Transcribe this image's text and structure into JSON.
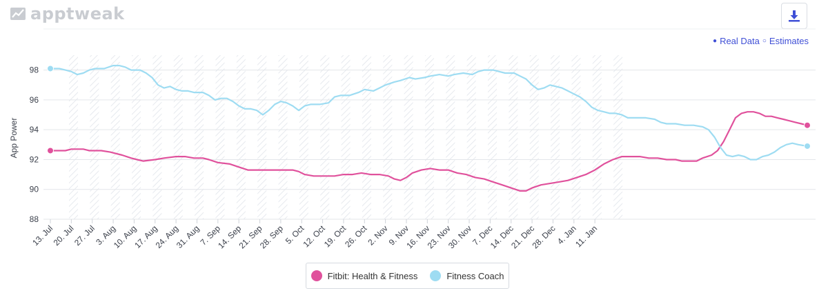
{
  "brand": {
    "name": "apptweak"
  },
  "toolbar": {
    "download_icon": "download-icon"
  },
  "legend_top": {
    "real_label": "Real Data",
    "estimates_label": "Estimates",
    "real_symbol": "●",
    "estimates_symbol": "○"
  },
  "chart_data": {
    "type": "line",
    "title": "",
    "xlabel": "",
    "ylabel": "App Power",
    "ylim": [
      88,
      99
    ],
    "yticks": [
      88,
      90,
      92,
      94,
      96,
      98
    ],
    "grid": "horizontal",
    "legend_position": "bottom-center",
    "categories": [
      "13. Jul",
      "20. Jul",
      "27. Jul",
      "3. Aug",
      "10. Aug",
      "17. Aug",
      "24. Aug",
      "31. Aug",
      "7. Sep",
      "14. Sep",
      "21. Sep",
      "28. Sep",
      "5. Oct",
      "12. Oct",
      "19. Oct",
      "26. Oct",
      "2. Nov",
      "9. Nov",
      "16. Nov",
      "23. Nov",
      "30. Nov",
      "7. Dec",
      "14. Dec",
      "21. Dec",
      "28. Dec",
      "4. Jan",
      "11. Jan"
    ],
    "x_days": [
      0,
      7,
      14,
      21,
      28,
      35,
      42,
      49,
      56,
      63,
      70,
      77,
      84,
      91,
      98,
      105,
      112,
      119,
      126,
      133,
      140,
      147,
      154,
      161,
      168,
      175,
      182
    ],
    "series": [
      {
        "name": "Fitbit: Health & Fitness",
        "color": "#e0519c",
        "points": [
          [
            0,
            92.6
          ],
          [
            5,
            92.6
          ],
          [
            7,
            92.7
          ],
          [
            11,
            92.7
          ],
          [
            13,
            92.6
          ],
          [
            17,
            92.6
          ],
          [
            20,
            92.5
          ],
          [
            24,
            92.3
          ],
          [
            27,
            92.1
          ],
          [
            29,
            92.0
          ],
          [
            31,
            91.9
          ],
          [
            35,
            92.0
          ],
          [
            38,
            92.1
          ],
          [
            42,
            92.2
          ],
          [
            45,
            92.2
          ],
          [
            48,
            92.1
          ],
          [
            51,
            92.1
          ],
          [
            53,
            92.0
          ],
          [
            56,
            91.8
          ],
          [
            60,
            91.7
          ],
          [
            63,
            91.5
          ],
          [
            66,
            91.3
          ],
          [
            70,
            91.3
          ],
          [
            74,
            91.3
          ],
          [
            78,
            91.3
          ],
          [
            81,
            91.3
          ],
          [
            83,
            91.2
          ],
          [
            85,
            91.0
          ],
          [
            88,
            90.9
          ],
          [
            91,
            90.9
          ],
          [
            95,
            90.9
          ],
          [
            98,
            91.0
          ],
          [
            101,
            91.0
          ],
          [
            104,
            91.1
          ],
          [
            107,
            91.0
          ],
          [
            110,
            91.0
          ],
          [
            113,
            90.9
          ],
          [
            115,
            90.7
          ],
          [
            117,
            90.6
          ],
          [
            119,
            90.8
          ],
          [
            121,
            91.1
          ],
          [
            124,
            91.3
          ],
          [
            127,
            91.4
          ],
          [
            130,
            91.3
          ],
          [
            133,
            91.3
          ],
          [
            136,
            91.1
          ],
          [
            139,
            91.0
          ],
          [
            142,
            90.8
          ],
          [
            145,
            90.7
          ],
          [
            148,
            90.5
          ],
          [
            151,
            90.3
          ],
          [
            154,
            90.1
          ],
          [
            157,
            89.9
          ],
          [
            159,
            89.9
          ],
          [
            161,
            90.1
          ],
          [
            164,
            90.3
          ],
          [
            167,
            90.4
          ],
          [
            170,
            90.5
          ],
          [
            173,
            90.6
          ],
          [
            176,
            90.8
          ],
          [
            179,
            91.0
          ],
          [
            182,
            91.3
          ],
          [
            185,
            91.7
          ],
          [
            188,
            92.0
          ],
          [
            191,
            92.2
          ],
          [
            194,
            92.2
          ],
          [
            197,
            92.2
          ],
          [
            200,
            92.1
          ],
          [
            203,
            92.1
          ],
          [
            206,
            92.0
          ],
          [
            209,
            92.0
          ],
          [
            211,
            91.9
          ],
          [
            214,
            91.9
          ],
          [
            216,
            91.9
          ],
          [
            218,
            92.1
          ],
          [
            221,
            92.3
          ],
          [
            223,
            92.6
          ],
          [
            225,
            93.2
          ],
          [
            227,
            94.0
          ],
          [
            229,
            94.8
          ],
          [
            231,
            95.1
          ],
          [
            233,
            95.2
          ],
          [
            235,
            95.2
          ],
          [
            237,
            95.1
          ],
          [
            239,
            94.9
          ],
          [
            241,
            94.9
          ],
          [
            243,
            94.8
          ],
          [
            245,
            94.7
          ],
          [
            247,
            94.6
          ],
          [
            249,
            94.5
          ],
          [
            251,
            94.4
          ],
          [
            253,
            94.3
          ]
        ]
      },
      {
        "name": "Fitness Coach",
        "color": "#9edcf2",
        "points": [
          [
            0,
            98.1
          ],
          [
            3,
            98.1
          ],
          [
            5,
            98.0
          ],
          [
            7,
            97.9
          ],
          [
            9,
            97.7
          ],
          [
            11,
            97.8
          ],
          [
            13,
            98.0
          ],
          [
            15,
            98.1
          ],
          [
            18,
            98.1
          ],
          [
            21,
            98.3
          ],
          [
            23,
            98.3
          ],
          [
            25,
            98.2
          ],
          [
            27,
            98.0
          ],
          [
            30,
            98.0
          ],
          [
            32,
            97.8
          ],
          [
            34,
            97.5
          ],
          [
            36,
            97.0
          ],
          [
            38,
            96.8
          ],
          [
            40,
            96.9
          ],
          [
            42,
            96.7
          ],
          [
            44,
            96.6
          ],
          [
            46,
            96.6
          ],
          [
            48,
            96.5
          ],
          [
            51,
            96.5
          ],
          [
            53,
            96.3
          ],
          [
            55,
            96.0
          ],
          [
            57,
            96.1
          ],
          [
            59,
            96.1
          ],
          [
            61,
            95.9
          ],
          [
            63,
            95.6
          ],
          [
            65,
            95.4
          ],
          [
            67,
            95.4
          ],
          [
            69,
            95.3
          ],
          [
            71,
            95.0
          ],
          [
            73,
            95.3
          ],
          [
            75,
            95.7
          ],
          [
            77,
            95.9
          ],
          [
            79,
            95.8
          ],
          [
            81,
            95.6
          ],
          [
            83,
            95.3
          ],
          [
            85,
            95.6
          ],
          [
            87,
            95.7
          ],
          [
            90,
            95.7
          ],
          [
            93,
            95.8
          ],
          [
            95,
            96.2
          ],
          [
            97,
            96.3
          ],
          [
            100,
            96.3
          ],
          [
            103,
            96.5
          ],
          [
            105,
            96.7
          ],
          [
            108,
            96.6
          ],
          [
            110,
            96.8
          ],
          [
            112,
            97.0
          ],
          [
            115,
            97.2
          ],
          [
            117,
            97.3
          ],
          [
            120,
            97.5
          ],
          [
            122,
            97.4
          ],
          [
            125,
            97.5
          ],
          [
            127,
            97.6
          ],
          [
            130,
            97.7
          ],
          [
            133,
            97.6
          ],
          [
            135,
            97.7
          ],
          [
            138,
            97.8
          ],
          [
            141,
            97.7
          ],
          [
            143,
            97.9
          ],
          [
            145,
            98.0
          ],
          [
            148,
            98.0
          ],
          [
            150,
            97.9
          ],
          [
            152,
            97.8
          ],
          [
            155,
            97.8
          ],
          [
            157,
            97.6
          ],
          [
            159,
            97.4
          ],
          [
            161,
            97.0
          ],
          [
            163,
            96.7
          ],
          [
            165,
            96.8
          ],
          [
            167,
            97.0
          ],
          [
            169,
            96.9
          ],
          [
            171,
            96.8
          ],
          [
            173,
            96.6
          ],
          [
            175,
            96.4
          ],
          [
            177,
            96.2
          ],
          [
            179,
            95.9
          ],
          [
            181,
            95.5
          ],
          [
            183,
            95.3
          ],
          [
            185,
            95.2
          ],
          [
            187,
            95.1
          ],
          [
            189,
            95.1
          ],
          [
            191,
            95.0
          ],
          [
            193,
            94.8
          ],
          [
            196,
            94.8
          ],
          [
            199,
            94.8
          ],
          [
            202,
            94.7
          ],
          [
            204,
            94.5
          ],
          [
            206,
            94.4
          ],
          [
            209,
            94.4
          ],
          [
            212,
            94.3
          ],
          [
            215,
            94.3
          ],
          [
            218,
            94.2
          ],
          [
            220,
            94.0
          ],
          [
            222,
            93.5
          ],
          [
            224,
            92.8
          ],
          [
            226,
            92.3
          ],
          [
            228,
            92.2
          ],
          [
            230,
            92.3
          ],
          [
            232,
            92.2
          ],
          [
            234,
            92.0
          ],
          [
            236,
            92.0
          ],
          [
            238,
            92.2
          ],
          [
            240,
            92.3
          ],
          [
            242,
            92.5
          ],
          [
            244,
            92.8
          ],
          [
            246,
            93.0
          ],
          [
            248,
            93.1
          ],
          [
            250,
            93.0
          ],
          [
            253,
            92.9
          ]
        ]
      }
    ]
  }
}
